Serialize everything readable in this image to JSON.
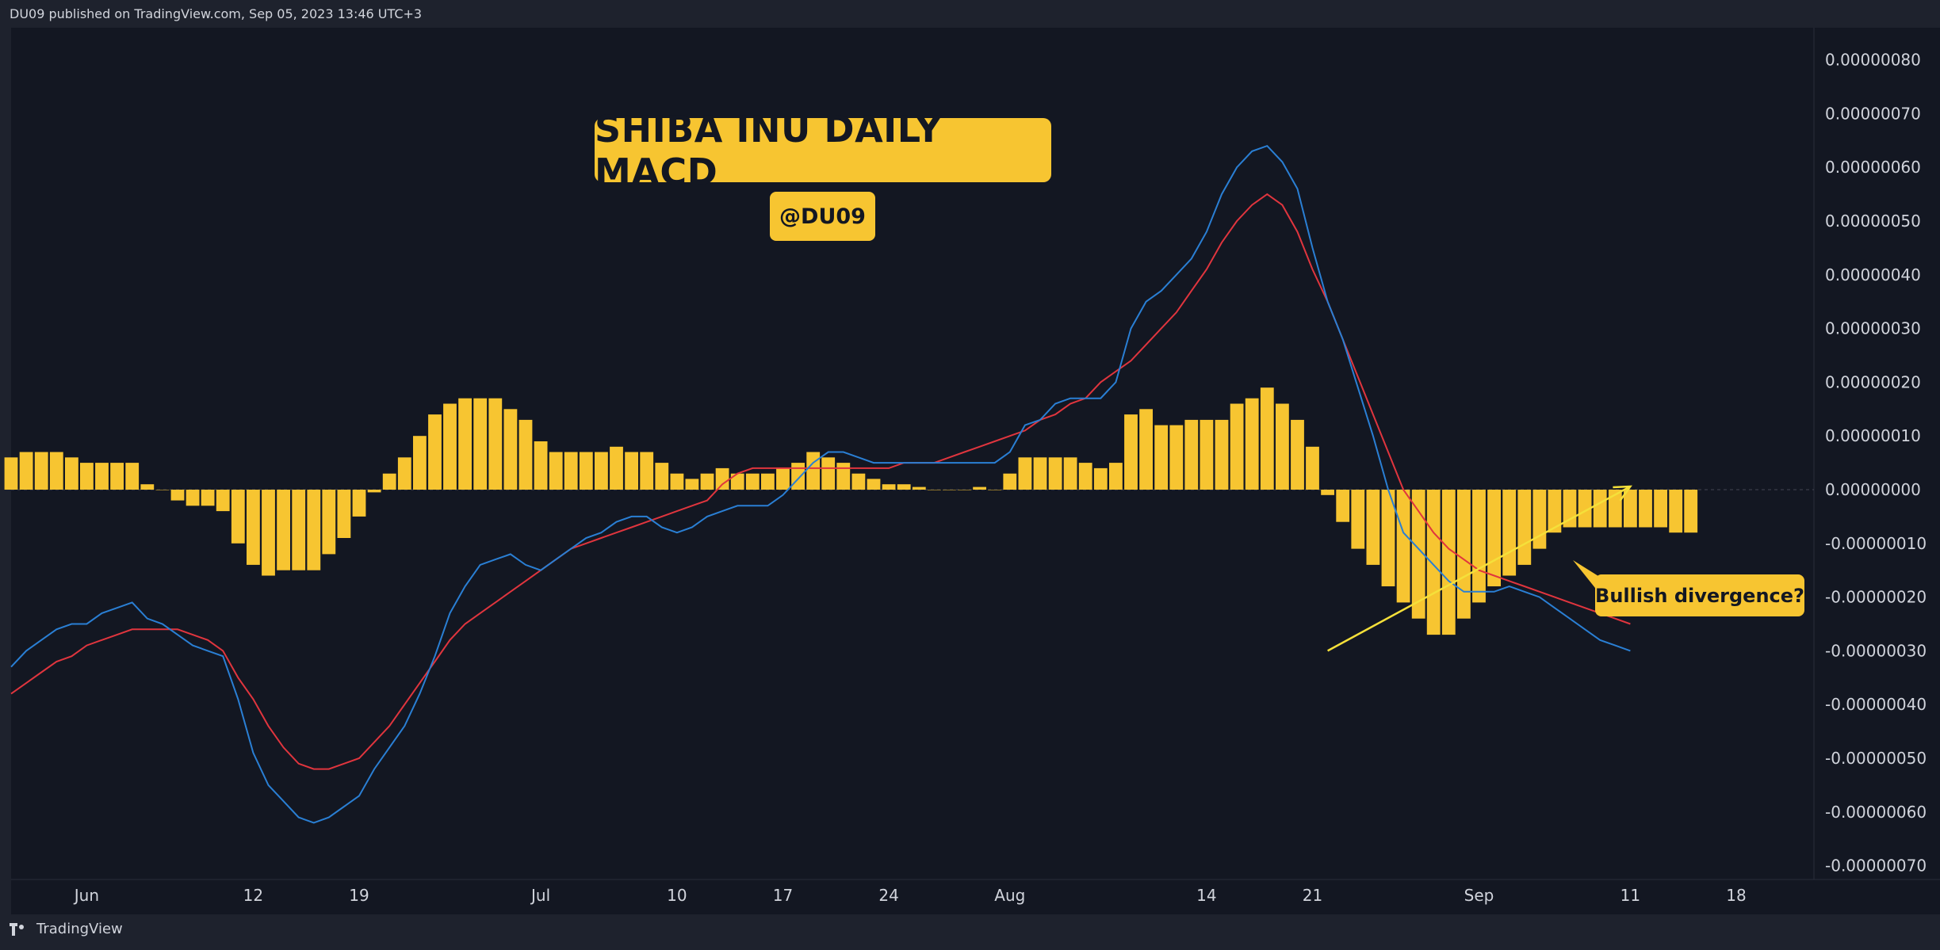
{
  "attribution": "DU09 published on TradingView.com, Sep 05, 2023 13:46 UTC+3",
  "footer_logo": "TradingView",
  "annotations": {
    "title": "SHIBA INU DAILY MACD",
    "handle": "@DU09",
    "callout": "Bullish divergence?"
  },
  "colors": {
    "background": "#131722",
    "frame": "#1e222d",
    "histogram": "#f7c531",
    "macd": "#2a7fd4",
    "signal": "#e0353e",
    "trendline": "#f5e03a",
    "label_bg": "#f7c531",
    "axis_text": "#d1d4dc"
  },
  "chart_data": {
    "type": "line",
    "indicator": "MACD",
    "ylim": [
      -7e-07,
      8e-07
    ],
    "y_ticks": [
      "0.00000080",
      "0.00000070",
      "0.00000060",
      "0.00000050",
      "0.00000040",
      "0.00000030",
      "0.00000020",
      "0.00000010",
      "0.00000000",
      "-0.00000010",
      "-0.00000020",
      "-0.00000030",
      "-0.00000040",
      "-0.00000050",
      "-0.00000060",
      "-0.00000070"
    ],
    "y_tick_values": [
      8e-07,
      7e-07,
      6e-07,
      5e-07,
      4e-07,
      3e-07,
      2e-07,
      1e-07,
      0,
      -1e-07,
      -2e-07,
      -3e-07,
      -4e-07,
      -5e-07,
      -6e-07,
      -7e-07
    ],
    "x_range": [
      "2023-05-27",
      "2023-09-18"
    ],
    "x_ticks": [
      {
        "label": "Jun",
        "date": "2023-06-01"
      },
      {
        "label": "12",
        "date": "2023-06-12"
      },
      {
        "label": "19",
        "date": "2023-06-19"
      },
      {
        "label": "Jul",
        "date": "2023-07-01"
      },
      {
        "label": "10",
        "date": "2023-07-10"
      },
      {
        "label": "17",
        "date": "2023-07-17"
      },
      {
        "label": "24",
        "date": "2023-07-24"
      },
      {
        "label": "Aug",
        "date": "2023-08-01"
      },
      {
        "label": "14",
        "date": "2023-08-14"
      },
      {
        "label": "21",
        "date": "2023-08-21"
      },
      {
        "label": "Sep",
        "date": "2023-09-01"
      },
      {
        "label": "11",
        "date": "2023-09-11"
      },
      {
        "label": "18",
        "date": "2023-09-18"
      }
    ],
    "start_date": "2023-05-27",
    "histogram": [
      6,
      7,
      7,
      7,
      6,
      5,
      5,
      5,
      5,
      1,
      0,
      -2,
      -3,
      -3,
      -4,
      -10,
      -14,
      -16,
      -15,
      -15,
      -15,
      -12,
      -9,
      -5,
      -0.5,
      3,
      6,
      10,
      14,
      16,
      17,
      17,
      17,
      15,
      13,
      9,
      7,
      7,
      7,
      7,
      8,
      7,
      7,
      5,
      3,
      2,
      3,
      4,
      3,
      3,
      3,
      4,
      5,
      7,
      6,
      5,
      3,
      2,
      1,
      1,
      0.5,
      0,
      0,
      0,
      0.5,
      0,
      3,
      6,
      6,
      6,
      6,
      5,
      4,
      5,
      14,
      15,
      12,
      12,
      13,
      13,
      13,
      16,
      17,
      19,
      16,
      13,
      8,
      -1,
      -6,
      -11,
      -14,
      -18,
      -21,
      -24,
      -27,
      -27,
      -24,
      -21,
      -18,
      -16,
      -14,
      -11,
      -8,
      -7,
      -7,
      -7,
      -7,
      -7,
      -7,
      -7,
      -8,
      -8
    ],
    "macd": [
      -33,
      -30,
      -28,
      -26,
      -25,
      -25,
      -23,
      -22,
      -21,
      -24,
      -25,
      -27,
      -29,
      -30,
      -31,
      -39,
      -49,
      -55,
      -58,
      -61,
      -62,
      -61,
      -59,
      -57,
      -52,
      -48,
      -44,
      -38,
      -31,
      -23,
      -18,
      -14,
      -13,
      -12,
      -14,
      -15,
      -13,
      -11,
      -9,
      -8,
      -6,
      -5,
      -5,
      -7,
      -8,
      -7,
      -5,
      -4,
      -3,
      -3,
      -3,
      -1,
      2,
      5,
      7,
      7,
      6,
      5,
      5,
      5,
      5,
      5,
      5,
      5,
      5,
      5,
      7,
      12,
      13,
      16,
      17,
      17,
      17,
      20,
      30,
      35,
      37,
      40,
      43,
      48,
      55,
      60,
      63,
      64,
      61,
      56,
      45,
      35,
      28,
      19,
      10,
      0,
      -8,
      -11,
      -14,
      -17,
      -19,
      -19,
      -19,
      -18,
      -19,
      -20,
      -22,
      -24,
      -26,
      -28,
      -29,
      -30
    ],
    "signal": [
      -38,
      -36,
      -34,
      -32,
      -31,
      -29,
      -28,
      -27,
      -26,
      -26,
      -26,
      -26,
      -27,
      -28,
      -30,
      -35,
      -39,
      -44,
      -48,
      -51,
      -52,
      -52,
      -51,
      -50,
      -47,
      -44,
      -40,
      -36,
      -32,
      -28,
      -25,
      -23,
      -21,
      -19,
      -17,
      -15,
      -13,
      -11,
      -10,
      -9,
      -8,
      -7,
      -6,
      -5,
      -4,
      -3,
      -2,
      1,
      3,
      4,
      4,
      4,
      4,
      4,
      4,
      4,
      4,
      4,
      4,
      5,
      5,
      5,
      6,
      7,
      8,
      9,
      10,
      11,
      13,
      14,
      16,
      17,
      20,
      22,
      24,
      27,
      30,
      33,
      37,
      41,
      46,
      50,
      53,
      55,
      53,
      48,
      41,
      35,
      28,
      21,
      14,
      7,
      0,
      -4,
      -8,
      -11,
      -13,
      -15,
      -16,
      -17,
      -18,
      -19,
      -20,
      -21,
      -22,
      -23,
      -24,
      -25
    ],
    "value_unit": 1e-08,
    "trendline_start": {
      "date": "2023-08-22",
      "value": -3e-07
    },
    "trendline_end": {
      "date": "2023-09-11",
      "value": -0.0
    },
    "legend": "none",
    "grid": false
  }
}
